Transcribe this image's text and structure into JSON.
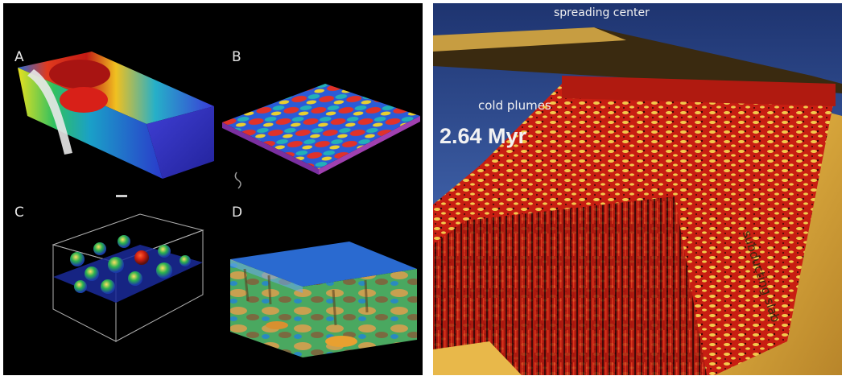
{
  "left_figure": {
    "panel_labels": [
      "A",
      "B",
      "C",
      "D"
    ]
  },
  "right_figure": {
    "labels": {
      "spreading_center": "spreading center",
      "cold_plumes": "cold plumes",
      "time": "2.64 Myr",
      "subducting_slab": "subducting slab"
    }
  },
  "colors": {
    "background_left": "#000000",
    "background_right": "#2d4a8a",
    "plume_red": "#c81e12",
    "plume_yellow": "#f2c94c",
    "slab_orange": "#d9a744"
  }
}
